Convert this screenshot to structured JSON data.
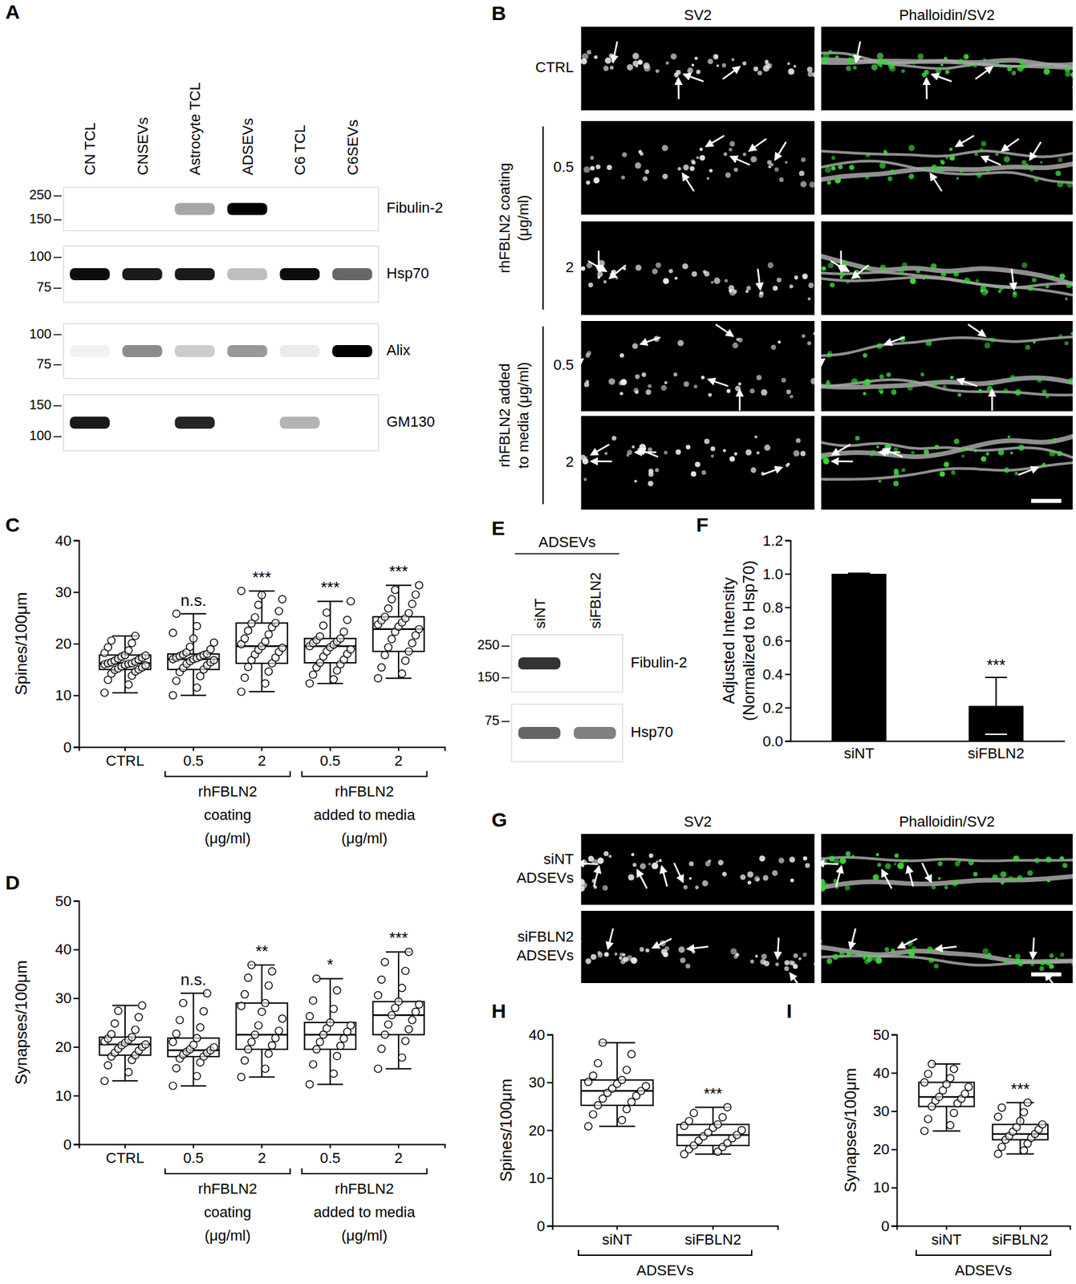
{
  "blots": [
    {
      "panel": "A",
      "lanes": [
        "CN TCL",
        "CNSEVs",
        "Astrocyte TCL",
        "ADSEVs",
        "C6 TCL",
        "C6SEVs"
      ],
      "rows": [
        {
          "label": "Fibulin-2",
          "markers": [
            250,
            150
          ],
          "bands": [
            0,
            0,
            0.35,
            1,
            0,
            0
          ]
        },
        {
          "label": "Hsp70",
          "markers": [
            100,
            75
          ],
          "bands": [
            0.95,
            0.9,
            0.9,
            0.25,
            0.95,
            0.6
          ]
        },
        {
          "label": "Alix",
          "markers": [
            100,
            75
          ],
          "bands": [
            0.05,
            0.45,
            0.2,
            0.4,
            0.08,
            1
          ]
        },
        {
          "label": "GM130",
          "markers": [
            150,
            100
          ],
          "bands": [
            0.9,
            0,
            0.85,
            0,
            0.3,
            0
          ]
        }
      ]
    },
    {
      "panel": "E",
      "header": "ADSEVs",
      "lanes": [
        "siNT",
        "siFBLN2"
      ],
      "rows": [
        {
          "label": "Fibulin-2",
          "markers": [
            250,
            150
          ],
          "bands": [
            0.8,
            0
          ]
        },
        {
          "label": "Hsp70",
          "markers": [
            75
          ],
          "bands": [
            0.6,
            0.5
          ]
        }
      ]
    }
  ],
  "micrographs": [
    {
      "panel": "B",
      "columns": [
        "SV2",
        "Phalloidin/SV2"
      ],
      "rows": [
        "CTRL",
        "0.5",
        "2",
        "0.5",
        "2"
      ],
      "groups": [
        {
          "label": [
            "rhFBLN2 coating",
            "(μg/ml)"
          ],
          "rows": [
            1,
            2
          ]
        },
        {
          "label": [
            "rhFBLN2 added",
            "to media (μg/ml)"
          ],
          "rows": [
            3,
            4
          ]
        }
      ]
    },
    {
      "panel": "G",
      "columns": [
        "SV2",
        "Phalloidin/SV2"
      ],
      "rows": [
        [
          "siNT",
          "ADSEVs"
        ],
        [
          "siFBLN2",
          "ADSEVs"
        ]
      ]
    }
  ],
  "chart_data": [
    {
      "panel": "C",
      "type": "box",
      "ylabel": "Spines/100μm",
      "categories": [
        "CTRL",
        "0.5",
        "2",
        "0.5",
        "2"
      ],
      "groups": [
        {
          "label": [
            "rhFBLN2",
            "coating",
            "(μg/ml)"
          ],
          "categories": [
            1,
            2
          ]
        },
        {
          "label": [
            "rhFBLN2",
            "added to media",
            "(μg/ml)"
          ],
          "categories": [
            3,
            4
          ]
        }
      ],
      "ylim": [
        0,
        40
      ],
      "yticks": [
        0,
        10,
        20,
        30,
        40
      ],
      "annotations": [
        null,
        "n.s.",
        "***",
        "***",
        "***"
      ],
      "boxes": [
        {
          "min": 10.5,
          "q1": 15,
          "median": 16.2,
          "q3": 17.8,
          "max": 21.5,
          "points": [
            10.5,
            12.1,
            13.0,
            13.8,
            14.2,
            14.6,
            14.9,
            15.0,
            15.2,
            15.4,
            15.6,
            15.8,
            15.9,
            16.0,
            16.1,
            16.2,
            16.2,
            16.4,
            16.5,
            16.7,
            16.9,
            17.1,
            17.3,
            17.5,
            17.7,
            17.8,
            18.2,
            18.7,
            19.3,
            20.1,
            20.6,
            21.5
          ]
        },
        {
          "min": 10,
          "q1": 15,
          "median": 17,
          "q3": 18,
          "max": 25.8,
          "points": [
            10.0,
            11.5,
            12.8,
            13.7,
            14.5,
            15.0,
            15.3,
            15.8,
            16.1,
            16.4,
            16.6,
            16.8,
            17.0,
            17.0,
            17.2,
            17.3,
            17.5,
            17.6,
            17.8,
            17.9,
            18.0,
            18.3,
            18.9,
            19.4,
            20.2,
            21.0,
            22.1,
            23.4,
            25.8
          ]
        },
        {
          "min": 10.7,
          "q1": 16.2,
          "median": 19.5,
          "q3": 24,
          "max": 30.2,
          "points": [
            10.7,
            12.3,
            13.4,
            14.6,
            15.5,
            16.2,
            16.8,
            17.3,
            17.9,
            18.4,
            18.8,
            19.2,
            19.5,
            19.9,
            20.4,
            21.0,
            21.8,
            22.5,
            23.2,
            23.9,
            24.0,
            25.1,
            26.3,
            27.5,
            28.6,
            29.4,
            30.2
          ]
        },
        {
          "min": 12.3,
          "q1": 16.3,
          "median": 19.5,
          "q3": 21,
          "max": 28.2,
          "points": [
            12.3,
            13.1,
            14.0,
            14.8,
            15.4,
            16.0,
            16.3,
            16.9,
            17.5,
            18.0,
            18.5,
            18.9,
            19.3,
            19.5,
            19.8,
            20.1,
            20.4,
            20.7,
            21.0,
            21.4,
            22.3,
            23.5,
            24.6,
            26.0,
            28.2
          ]
        },
        {
          "min": 13.3,
          "q1": 18.5,
          "median": 22.8,
          "q3": 25.2,
          "max": 31.3,
          "points": [
            13.3,
            14.2,
            15.4,
            16.7,
            17.8,
            18.5,
            19.3,
            20.1,
            20.9,
            21.6,
            22.3,
            22.8,
            23.3,
            23.7,
            24.1,
            24.5,
            24.9,
            25.2,
            25.9,
            26.8,
            27.7,
            28.6,
            29.5,
            30.4,
            31.3
          ]
        }
      ]
    },
    {
      "panel": "D",
      "type": "box",
      "ylabel": "Synapses/100μm",
      "categories": [
        "CTRL",
        "0.5",
        "2",
        "0.5",
        "2"
      ],
      "groups": [
        {
          "label": [
            "rhFBLN2",
            "coating",
            "(μg/ml)"
          ],
          "categories": [
            1,
            2
          ]
        },
        {
          "label": [
            "rhFBLN2",
            "added to media",
            "(μg/ml)"
          ],
          "categories": [
            3,
            4
          ]
        }
      ],
      "ylim": [
        0,
        50
      ],
      "yticks": [
        0,
        10,
        20,
        30,
        40,
        50
      ],
      "annotations": [
        null,
        "n.s.",
        "**",
        "*",
        "***"
      ],
      "boxes": [
        {
          "min": 13,
          "q1": 18.3,
          "median": 20.5,
          "q3": 22,
          "max": 28.5,
          "points": [
            13.0,
            14.8,
            16.2,
            17.3,
            18.0,
            18.3,
            18.8,
            19.2,
            19.6,
            20.0,
            20.3,
            20.5,
            20.8,
            21.1,
            21.4,
            21.7,
            22.0,
            22.6,
            23.5,
            24.8,
            26.1,
            27.4,
            28.5
          ]
        },
        {
          "min": 12,
          "q1": 18,
          "median": 19.3,
          "q3": 21.8,
          "max": 31,
          "points": [
            12.0,
            14.0,
            15.6,
            16.8,
            17.6,
            18.0,
            18.4,
            18.8,
            19.0,
            19.3,
            19.5,
            19.9,
            20.4,
            21.0,
            21.8,
            22.7,
            24.0,
            25.5,
            27.3,
            29.0,
            31.0
          ]
        },
        {
          "min": 13.8,
          "q1": 19.5,
          "median": 22.5,
          "q3": 29,
          "max": 36.8,
          "points": [
            13.8,
            15.5,
            17.2,
            18.6,
            19.5,
            20.3,
            21.0,
            21.8,
            22.5,
            23.3,
            24.4,
            25.8,
            27.2,
            28.4,
            29.0,
            30.8,
            32.6,
            34.2,
            35.5,
            36.8
          ]
        },
        {
          "min": 12.3,
          "q1": 19.5,
          "median": 22.5,
          "q3": 25,
          "max": 34,
          "points": [
            12.3,
            14.5,
            16.4,
            18.1,
            19.5,
            20.2,
            21.0,
            21.7,
            22.5,
            23.1,
            23.8,
            24.4,
            25.0,
            26.3,
            27.8,
            29.5,
            31.6,
            34.0
          ]
        },
        {
          "min": 15.5,
          "q1": 22.5,
          "median": 26.5,
          "q3": 29.3,
          "max": 39.5,
          "points": [
            15.5,
            17.8,
            19.6,
            21.2,
            22.5,
            23.6,
            24.6,
            25.5,
            26.5,
            27.2,
            28.0,
            28.7,
            29.3,
            30.6,
            32.1,
            33.8,
            35.6,
            37.4,
            39.5
          ]
        }
      ]
    },
    {
      "panel": "F",
      "type": "bar",
      "ylabel": [
        "Adjusted Intensity",
        "(Normalized to Hsp70)"
      ],
      "categories": [
        "siNT",
        "siFBLN2"
      ],
      "values": [
        1.0,
        0.21
      ],
      "errors": [
        0.003,
        0.17
      ],
      "color": "#000000",
      "ylim": [
        0,
        1.2
      ],
      "yticks": [
        {
          "value": 0,
          "label": "0.0"
        },
        0.2,
        0.4,
        0.6,
        0.8,
        {
          "value": 1,
          "label": "1.0"
        },
        1.2
      ],
      "annotations": [
        null,
        "***"
      ]
    },
    {
      "panel": "H",
      "type": "box",
      "ylabel": "Spines/100μm",
      "categories": [
        "siNT",
        "siFBLN2"
      ],
      "groups": [
        {
          "label": [
            "ADSEVs"
          ],
          "categories": [
            0,
            1
          ]
        }
      ],
      "ylim": [
        0,
        40
      ],
      "yticks": [
        0,
        10,
        20,
        30,
        40
      ],
      "annotations": [
        null,
        "***"
      ],
      "boxes": [
        {
          "min": 20.8,
          "q1": 25.2,
          "median": 28.2,
          "q3": 30.5,
          "max": 38.3,
          "points": [
            20.8,
            22.1,
            23.3,
            24.4,
            25.2,
            25.9,
            26.6,
            27.2,
            27.8,
            28.2,
            28.7,
            29.2,
            29.7,
            30.1,
            30.5,
            31.4,
            32.6,
            34.0,
            35.9,
            38.3
          ]
        },
        {
          "min": 15,
          "q1": 16.8,
          "median": 19,
          "q3": 21.2,
          "max": 24.8,
          "points": [
            15.0,
            15.5,
            16.0,
            16.5,
            16.8,
            17.3,
            17.8,
            18.3,
            18.7,
            19.0,
            19.5,
            20.0,
            20.5,
            20.9,
            21.2,
            21.9,
            22.7,
            23.6,
            24.8
          ]
        }
      ]
    },
    {
      "panel": "I",
      "type": "box",
      "ylabel": "Synapses/100μm",
      "categories": [
        "siNT",
        "siFBLN2"
      ],
      "groups": [
        {
          "label": [
            "ADSEVs"
          ],
          "categories": [
            0,
            1
          ]
        }
      ],
      "ylim": [
        0,
        50
      ],
      "yticks": [
        0,
        10,
        20,
        30,
        40,
        50
      ],
      "annotations": [
        null,
        "***"
      ],
      "boxes": [
        {
          "min": 24.8,
          "q1": 31.2,
          "median": 33.7,
          "q3": 37.5,
          "max": 42.3,
          "points": [
            24.8,
            26.3,
            27.9,
            29.5,
            31.2,
            32.0,
            32.7,
            33.2,
            33.7,
            34.5,
            35.4,
            36.3,
            37.0,
            37.5,
            38.6,
            39.7,
            41.0,
            42.3
          ]
        },
        {
          "min": 18.8,
          "q1": 22.5,
          "median": 24,
          "q3": 26.5,
          "max": 32.2,
          "points": [
            18.8,
            19.7,
            20.6,
            21.5,
            22.5,
            23.0,
            23.5,
            24.0,
            24.6,
            25.2,
            25.8,
            26.5,
            27.4,
            28.5,
            29.7,
            30.9,
            32.2
          ]
        }
      ]
    }
  ]
}
